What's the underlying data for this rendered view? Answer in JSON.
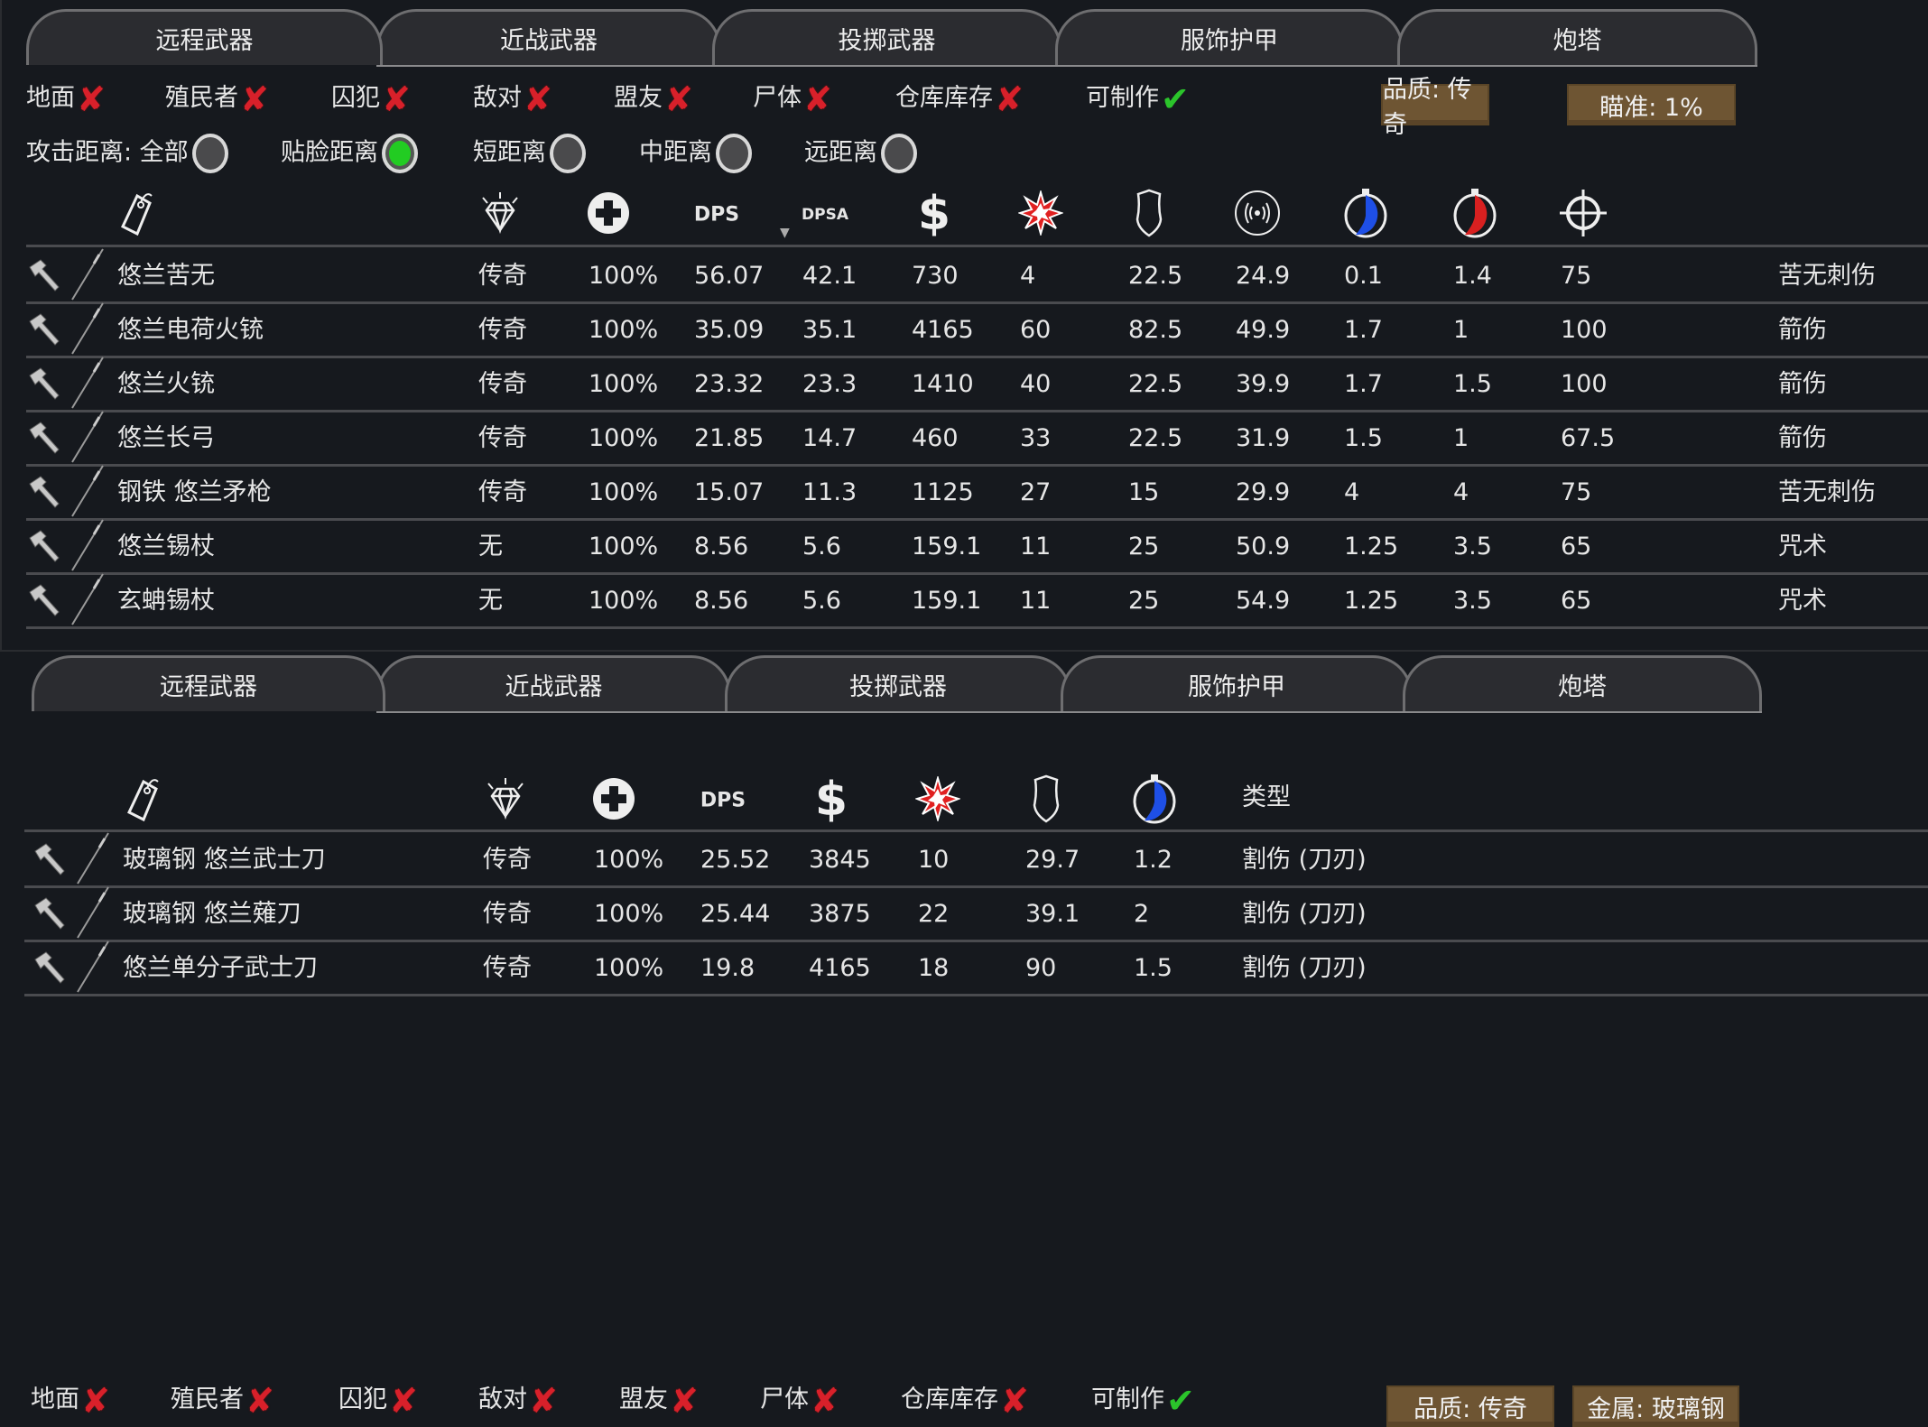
{
  "tabs": [
    "远程武器",
    "近战武器",
    "投掷武器",
    "服饰护甲",
    "炮塔"
  ],
  "panel1": {
    "filters": [
      {
        "label": "地面",
        "state": "off"
      },
      {
        "label": "殖民者",
        "state": "off"
      },
      {
        "label": "囚犯",
        "state": "off"
      },
      {
        "label": "敌对",
        "state": "off"
      },
      {
        "label": "盟友",
        "state": "off"
      },
      {
        "label": "尸体",
        "state": "off"
      },
      {
        "label": "仓库库存",
        "state": "off"
      },
      {
        "label": "可制作",
        "state": "on"
      }
    ],
    "buttons": [
      "品质: 传奇",
      "瞄准: 1%"
    ],
    "range_label": "攻击距离: 全部",
    "ranges": [
      {
        "label": "贴脸距离",
        "selected": true
      },
      {
        "label": "短距离",
        "selected": false
      },
      {
        "label": "中距离",
        "selected": false
      },
      {
        "label": "远距离",
        "selected": false
      }
    ],
    "headers": [
      "tag-icon",
      "diamond-icon",
      "health-icon",
      "DPS",
      "DPSA",
      "dollar-icon",
      "explosion-icon",
      "armor-icon",
      "sound-icon",
      "warmup-timer-icon",
      "cooldown-timer-icon",
      "crosshair-icon"
    ],
    "rows": [
      [
        "悠兰苦无",
        "传奇",
        "100%",
        "56.07",
        "42.1",
        "730",
        "4",
        "22.5",
        "24.9",
        "0.1",
        "1.4",
        "75",
        "苦无刺伤"
      ],
      [
        "悠兰电荷火铳",
        "传奇",
        "100%",
        "35.09",
        "35.1",
        "4165",
        "60",
        "82.5",
        "49.9",
        "1.7",
        "1",
        "100",
        "箭伤"
      ],
      [
        "悠兰火铳",
        "传奇",
        "100%",
        "23.32",
        "23.3",
        "1410",
        "40",
        "22.5",
        "39.9",
        "1.7",
        "1.5",
        "100",
        "箭伤"
      ],
      [
        "悠兰长弓",
        "传奇",
        "100%",
        "21.85",
        "14.7",
        "460",
        "33",
        "22.5",
        "31.9",
        "1.5",
        "1",
        "67.5",
        "箭伤"
      ],
      [
        "钢铁 悠兰矛枪",
        "传奇",
        "100%",
        "15.07",
        "11.3",
        "1125",
        "27",
        "15",
        "29.9",
        "4",
        "4",
        "75",
        "苦无刺伤"
      ],
      [
        "悠兰锡杖",
        "无",
        "100%",
        "8.56",
        "5.6",
        "159.1",
        "11",
        "25",
        "50.9",
        "1.25",
        "3.5",
        "65",
        "咒术"
      ],
      [
        "玄蚺锡杖",
        "无",
        "100%",
        "8.56",
        "5.6",
        "159.1",
        "11",
        "25",
        "54.9",
        "1.25",
        "3.5",
        "65",
        "咒术"
      ]
    ]
  },
  "panel2": {
    "filters": [
      {
        "label": "地面",
        "state": "off"
      },
      {
        "label": "殖民者",
        "state": "off"
      },
      {
        "label": "囚犯",
        "state": "off"
      },
      {
        "label": "敌对",
        "state": "off"
      },
      {
        "label": "盟友",
        "state": "off"
      },
      {
        "label": "尸体",
        "state": "off"
      },
      {
        "label": "仓库库存",
        "state": "off"
      },
      {
        "label": "可制作",
        "state": "on"
      }
    ],
    "buttons": [
      "品质: 传奇",
      "金属: 玻璃钢"
    ],
    "headers": [
      "tag-icon",
      "diamond-icon",
      "health-icon",
      "DPS",
      "dollar-icon",
      "explosion-icon",
      "armor-icon",
      "warmup-timer-icon"
    ],
    "type_header": "类型",
    "rows": [
      [
        "玻璃钢 悠兰武士刀",
        "传奇",
        "100%",
        "25.52",
        "3845",
        "10",
        "29.7",
        "1.2",
        "割伤 (刀刃)"
      ],
      [
        "玻璃钢 悠兰薙刀",
        "传奇",
        "100%",
        "25.44",
        "3875",
        "22",
        "39.1",
        "2",
        "割伤 (刀刃)"
      ],
      [
        "悠兰单分子武士刀",
        "传奇",
        "100%",
        "19.8",
        "4165",
        "18",
        "90",
        "1.5",
        "割伤 (刀刃)"
      ]
    ]
  },
  "colors": {
    "cross": "#d8202a",
    "check": "#2bc42b",
    "button": "#6e5533",
    "radio_on": "#22cc22",
    "warmup": "#1e4fe6",
    "cooldown": "#d82020"
  }
}
